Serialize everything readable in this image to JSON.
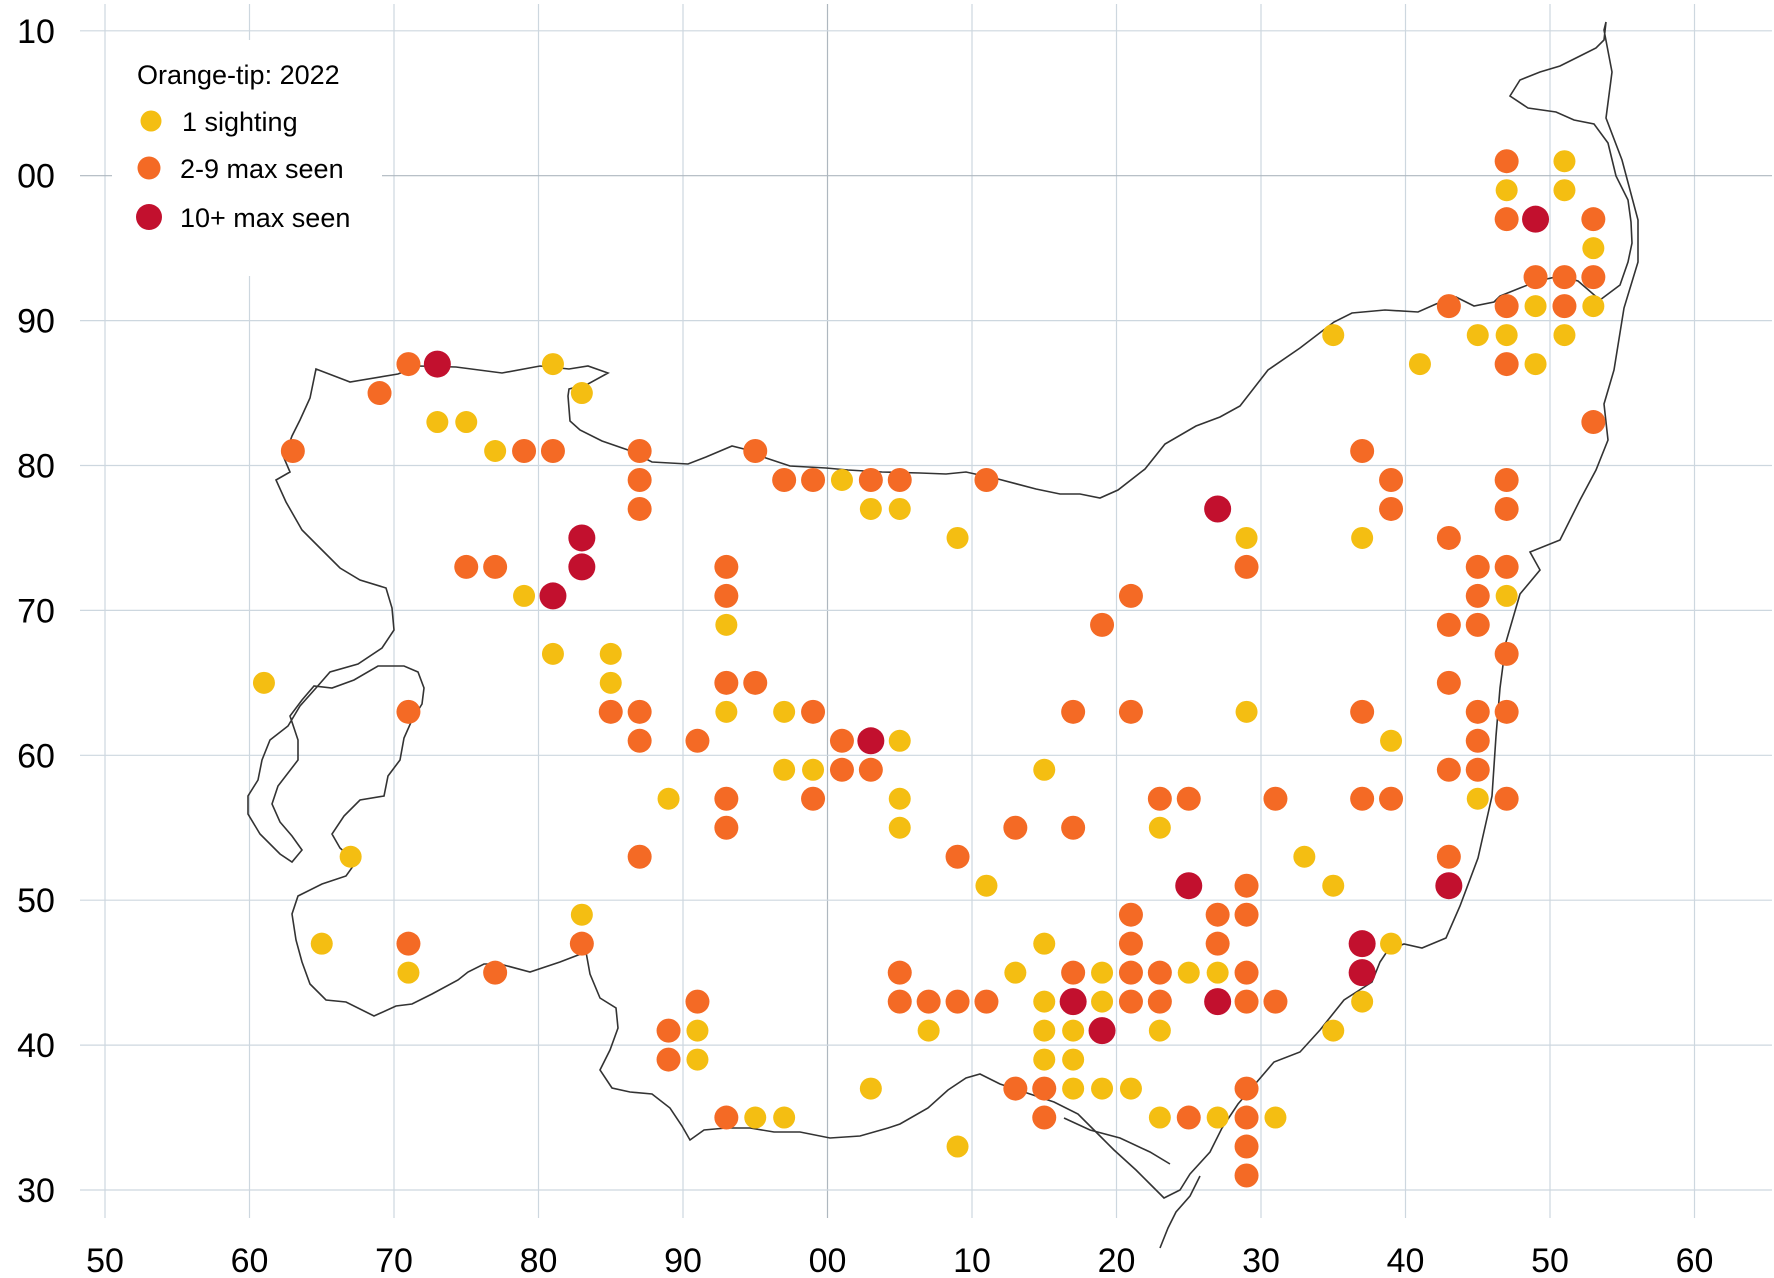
{
  "legend": {
    "title": "Orange-tip:  2022",
    "items": [
      {
        "key": "one",
        "label": "1 sighting",
        "color": "#F4BE12"
      },
      {
        "key": "few",
        "label": "2-9 max seen",
        "color": "#F46A25"
      },
      {
        "key": "many",
        "label": "10+ max seen",
        "color": "#C2102E"
      }
    ]
  },
  "grid": {
    "x_labels": [
      "50",
      "60",
      "70",
      "80",
      "90",
      "00",
      "10",
      "20",
      "30",
      "40",
      "50",
      "60"
    ],
    "y_labels": [
      "10",
      "00",
      "90",
      "80",
      "70",
      "60",
      "50",
      "40",
      "30"
    ],
    "line_color": "#CDD7DF",
    "coast_color": "#333333"
  },
  "chart_data": {
    "type": "scatter",
    "title": "Orange-tip:  2022",
    "xlabel": "",
    "ylabel": "",
    "x_tick_labels": [
      "50",
      "60",
      "70",
      "80",
      "90",
      "00",
      "10",
      "20",
      "30",
      "40",
      "50",
      "60"
    ],
    "y_tick_labels": [
      "10",
      "00",
      "90",
      "80",
      "70",
      "60",
      "50",
      "40",
      "30"
    ],
    "xlim": [
      50,
      160
    ],
    "ylim": [
      28,
      110
    ],
    "grid": true,
    "legend_position": "top-left",
    "series": [
      {
        "name": "1 sighting",
        "color": "#F4BE12",
        "points": [
          [
            61,
            65
          ],
          [
            65,
            47
          ],
          [
            67,
            53
          ],
          [
            71,
            45
          ],
          [
            73,
            83
          ],
          [
            75,
            83
          ],
          [
            77,
            81
          ],
          [
            79,
            71
          ],
          [
            81,
            87
          ],
          [
            81,
            67
          ],
          [
            83,
            85
          ],
          [
            83,
            49
          ],
          [
            85,
            67
          ],
          [
            85,
            65
          ],
          [
            89,
            57
          ],
          [
            91,
            41
          ],
          [
            91,
            39
          ],
          [
            93,
            69
          ],
          [
            93,
            63
          ],
          [
            95,
            35
          ],
          [
            97,
            63
          ],
          [
            97,
            59
          ],
          [
            97,
            35
          ],
          [
            99,
            59
          ],
          [
            101,
            79
          ],
          [
            103,
            77
          ],
          [
            103,
            37
          ],
          [
            105,
            77
          ],
          [
            105,
            61
          ],
          [
            105,
            57
          ],
          [
            105,
            55
          ],
          [
            107,
            41
          ],
          [
            109,
            75
          ],
          [
            109,
            33
          ],
          [
            111,
            51
          ],
          [
            113,
            45
          ],
          [
            115,
            59
          ],
          [
            115,
            47
          ],
          [
            115,
            43
          ],
          [
            115,
            41
          ],
          [
            115,
            39
          ],
          [
            117,
            41
          ],
          [
            117,
            39
          ],
          [
            117,
            37
          ],
          [
            119,
            45
          ],
          [
            119,
            43
          ],
          [
            119,
            37
          ],
          [
            121,
            37
          ],
          [
            123,
            55
          ],
          [
            123,
            41
          ],
          [
            123,
            35
          ],
          [
            125,
            45
          ],
          [
            127,
            45
          ],
          [
            127,
            35
          ],
          [
            129,
            75
          ],
          [
            129,
            63
          ],
          [
            131,
            35
          ],
          [
            133,
            53
          ],
          [
            135,
            89
          ],
          [
            135,
            51
          ],
          [
            135,
            41
          ],
          [
            137,
            75
          ],
          [
            137,
            43
          ],
          [
            139,
            61
          ],
          [
            139,
            47
          ],
          [
            141,
            87
          ],
          [
            145,
            89
          ],
          [
            145,
            57
          ],
          [
            147,
            99
          ],
          [
            147,
            89
          ],
          [
            147,
            71
          ],
          [
            149,
            91
          ],
          [
            149,
            87
          ],
          [
            151,
            101
          ],
          [
            151,
            99
          ],
          [
            151,
            89
          ],
          [
            153,
            95
          ],
          [
            153,
            91
          ]
        ]
      },
      {
        "name": "2-9 max seen",
        "color": "#F46A25",
        "points": [
          [
            63,
            81
          ],
          [
            69,
            85
          ],
          [
            71,
            87
          ],
          [
            71,
            63
          ],
          [
            71,
            47
          ],
          [
            75,
            73
          ],
          [
            77,
            73
          ],
          [
            77,
            45
          ],
          [
            79,
            81
          ],
          [
            81,
            81
          ],
          [
            83,
            47
          ],
          [
            85,
            63
          ],
          [
            87,
            81
          ],
          [
            87,
            79
          ],
          [
            87,
            77
          ],
          [
            87,
            63
          ],
          [
            87,
            61
          ],
          [
            87,
            53
          ],
          [
            89,
            41
          ],
          [
            89,
            39
          ],
          [
            91,
            61
          ],
          [
            91,
            43
          ],
          [
            93,
            73
          ],
          [
            93,
            71
          ],
          [
            93,
            65
          ],
          [
            93,
            57
          ],
          [
            93,
            55
          ],
          [
            93,
            35
          ],
          [
            95,
            81
          ],
          [
            95,
            65
          ],
          [
            97,
            79
          ],
          [
            99,
            79
          ],
          [
            99,
            63
          ],
          [
            99,
            57
          ],
          [
            101,
            61
          ],
          [
            101,
            59
          ],
          [
            103,
            79
          ],
          [
            103,
            59
          ],
          [
            105,
            79
          ],
          [
            105,
            45
          ],
          [
            105,
            43
          ],
          [
            107,
            43
          ],
          [
            109,
            53
          ],
          [
            109,
            43
          ],
          [
            111,
            79
          ],
          [
            111,
            43
          ],
          [
            113,
            55
          ],
          [
            113,
            37
          ],
          [
            115,
            37
          ],
          [
            115,
            35
          ],
          [
            117,
            63
          ],
          [
            117,
            55
          ],
          [
            117,
            45
          ],
          [
            119,
            69
          ],
          [
            121,
            71
          ],
          [
            121,
            63
          ],
          [
            121,
            49
          ],
          [
            121,
            47
          ],
          [
            121,
            45
          ],
          [
            121,
            43
          ],
          [
            123,
            57
          ],
          [
            123,
            45
          ],
          [
            123,
            43
          ],
          [
            125,
            57
          ],
          [
            125,
            35
          ],
          [
            127,
            49
          ],
          [
            127,
            47
          ],
          [
            129,
            73
          ],
          [
            129,
            51
          ],
          [
            129,
            49
          ],
          [
            129,
            45
          ],
          [
            129,
            43
          ],
          [
            129,
            37
          ],
          [
            129,
            35
          ],
          [
            129,
            33
          ],
          [
            129,
            31
          ],
          [
            131,
            57
          ],
          [
            131,
            43
          ],
          [
            137,
            81
          ],
          [
            137,
            63
          ],
          [
            137,
            57
          ],
          [
            139,
            79
          ],
          [
            139,
            77
          ],
          [
            139,
            57
          ],
          [
            143,
            91
          ],
          [
            143,
            75
          ],
          [
            143,
            69
          ],
          [
            143,
            65
          ],
          [
            143,
            59
          ],
          [
            143,
            53
          ],
          [
            145,
            73
          ],
          [
            145,
            71
          ],
          [
            145,
            69
          ],
          [
            145,
            63
          ],
          [
            145,
            61
          ],
          [
            145,
            59
          ],
          [
            147,
            101
          ],
          [
            147,
            97
          ],
          [
            147,
            91
          ],
          [
            147,
            87
          ],
          [
            147,
            79
          ],
          [
            147,
            77
          ],
          [
            147,
            73
          ],
          [
            147,
            67
          ],
          [
            147,
            63
          ],
          [
            147,
            57
          ],
          [
            149,
            93
          ],
          [
            151,
            93
          ],
          [
            151,
            91
          ],
          [
            153,
            97
          ],
          [
            153,
            93
          ],
          [
            153,
            83
          ]
        ]
      },
      {
        "name": "10+ max seen",
        "color": "#C2102E",
        "points": [
          [
            73,
            87
          ],
          [
            81,
            71
          ],
          [
            83,
            75
          ],
          [
            83,
            73
          ],
          [
            103,
            61
          ],
          [
            117,
            43
          ],
          [
            119,
            41
          ],
          [
            125,
            51
          ],
          [
            127,
            77
          ],
          [
            127,
            43
          ],
          [
            137,
            47
          ],
          [
            137,
            45
          ],
          [
            143,
            51
          ],
          [
            149,
            97
          ]
        ]
      }
    ]
  }
}
